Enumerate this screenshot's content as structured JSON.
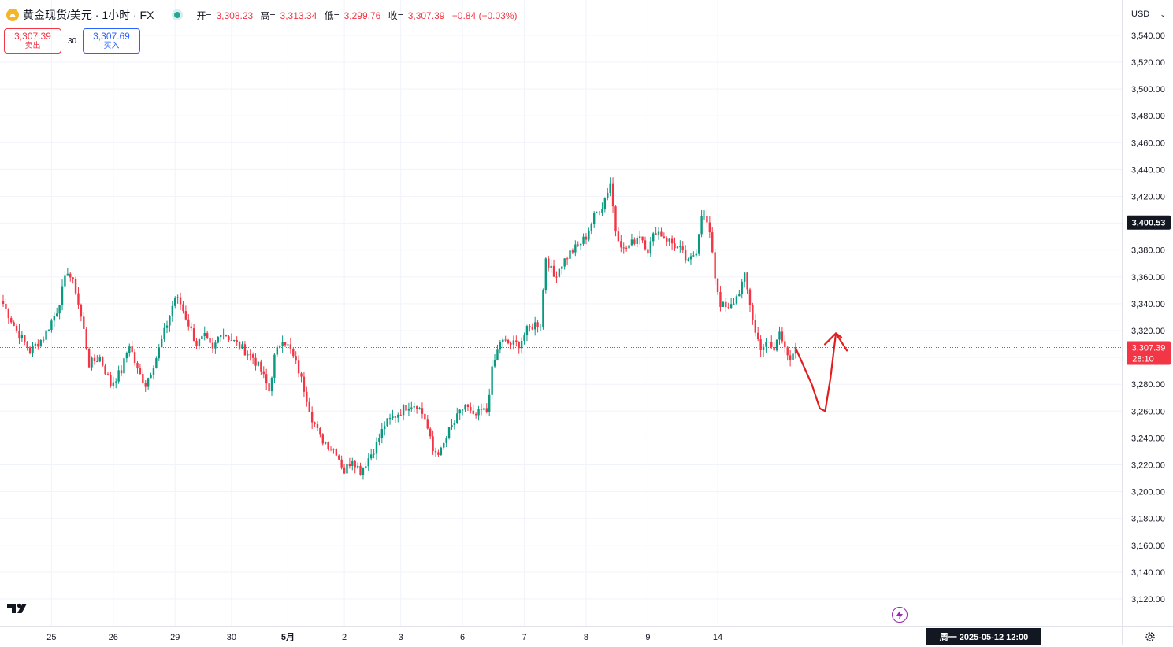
{
  "header": {
    "title": "黄金现货/美元 · 1小时 · FX",
    "open_label": "开=",
    "open": "3,308.23",
    "high_label": "高=",
    "high": "3,313.34",
    "low_label": "低=",
    "low": "3,299.76",
    "close_label": "收=",
    "close": "3,307.39",
    "change": "−0.84 (−0.03%)"
  },
  "trade": {
    "sell_price": "3,307.39",
    "sell_label": "卖出",
    "spread": "30",
    "buy_price": "3,307.69",
    "buy_label": "买入"
  },
  "currency": "USD",
  "time_tooltip": "周一 2025-05-12   12:00",
  "price_scale": {
    "ticks": [
      "3,540.00",
      "3,520.00",
      "3,500.00",
      "3,480.00",
      "3,460.00",
      "3,440.00",
      "3,420.00",
      "3,400.00",
      "3,380.00",
      "3,360.00",
      "3,340.00",
      "3,320.00",
      "3,300.00",
      "3,280.00",
      "3,260.00",
      "3,240.00",
      "3,220.00",
      "3,200.00",
      "3,180.00",
      "3,160.00",
      "3,140.00",
      "3,120.00"
    ],
    "tick_values": [
      3540,
      3520,
      3500,
      3480,
      3460,
      3440,
      3420,
      3400,
      3380,
      3360,
      3340,
      3320,
      3300,
      3280,
      3260,
      3240,
      3220,
      3200,
      3180,
      3160,
      3140,
      3120
    ],
    "crosshair_label": "3,400.53",
    "crosshair_value": 3400.53,
    "last_price_label": "3,307.39",
    "last_price_value": 3307.39,
    "countdown": "28:10"
  },
  "time_scale": {
    "labels": [
      "25",
      "26",
      "29",
      "30",
      "5月",
      "2",
      "3",
      "6",
      "7",
      "8",
      "9",
      "14"
    ],
    "bold": [
      "5月"
    ]
  },
  "colors": {
    "up": "#089981",
    "down": "#f23645",
    "grid": "#f0f3fa",
    "text": "#131722",
    "annotation": "#e11d1d",
    "last_price": "#f23645"
  },
  "chart_data": {
    "type": "candlestick",
    "symbol": "黄金现货/美元",
    "timeframe": "1小时",
    "x_labels": [
      "25",
      "26",
      "29",
      "30",
      "5月",
      "2",
      "3",
      "6",
      "7",
      "8",
      "9",
      "14"
    ],
    "anchors": [
      [
        0,
        3340
      ],
      [
        5,
        3320
      ],
      [
        10,
        3305
      ],
      [
        15,
        3315
      ],
      [
        20,
        3335
      ],
      [
        24,
        3365
      ],
      [
        27,
        3350
      ],
      [
        30,
        3320
      ],
      [
        32,
        3295
      ],
      [
        36,
        3300
      ],
      [
        40,
        3280
      ],
      [
        44,
        3290
      ],
      [
        47,
        3310
      ],
      [
        50,
        3290
      ],
      [
        53,
        3280
      ],
      [
        57,
        3300
      ],
      [
        61,
        3325
      ],
      [
        64,
        3345
      ],
      [
        66,
        3340
      ],
      [
        69,
        3325
      ],
      [
        72,
        3310
      ],
      [
        75,
        3315
      ],
      [
        78,
        3305
      ],
      [
        81,
        3320
      ],
      [
        84,
        3315
      ],
      [
        87,
        3310
      ],
      [
        90,
        3305
      ],
      [
        93,
        3300
      ],
      [
        96,
        3290
      ],
      [
        99,
        3275
      ],
      [
        101,
        3300
      ],
      [
        104,
        3315
      ],
      [
        107,
        3305
      ],
      [
        110,
        3290
      ],
      [
        113,
        3270
      ],
      [
        115,
        3255
      ],
      [
        118,
        3240
      ],
      [
        121,
        3235
      ],
      [
        124,
        3230
      ],
      [
        127,
        3215
      ],
      [
        130,
        3225
      ],
      [
        133,
        3215
      ],
      [
        136,
        3225
      ],
      [
        139,
        3235
      ],
      [
        142,
        3250
      ],
      [
        145,
        3255
      ],
      [
        148,
        3260
      ],
      [
        151,
        3265
      ],
      [
        154,
        3265
      ],
      [
        157,
        3255
      ],
      [
        160,
        3230
      ],
      [
        163,
        3230
      ],
      [
        166,
        3245
      ],
      [
        169,
        3255
      ],
      [
        172,
        3265
      ],
      [
        175,
        3255
      ],
      [
        178,
        3260
      ],
      [
        180,
        3260
      ],
      [
        182,
        3290
      ],
      [
        185,
        3312
      ],
      [
        189,
        3310
      ],
      [
        192,
        3310
      ],
      [
        195,
        3320
      ],
      [
        198,
        3325
      ],
      [
        200,
        3325
      ],
      [
        202,
        3375
      ],
      [
        205,
        3360
      ],
      [
        208,
        3370
      ],
      [
        211,
        3378
      ],
      [
        214,
        3383
      ],
      [
        217,
        3390
      ],
      [
        220,
        3405
      ],
      [
        223,
        3413
      ],
      [
        226,
        3430
      ],
      [
        228,
        3395
      ],
      [
        231,
        3380
      ],
      [
        234,
        3385
      ],
      [
        237,
        3392
      ],
      [
        240,
        3380
      ],
      [
        243,
        3395
      ],
      [
        246,
        3390
      ],
      [
        249,
        3385
      ],
      [
        252,
        3380
      ],
      [
        255,
        3370
      ],
      [
        258,
        3380
      ],
      [
        260,
        3408
      ],
      [
        262,
        3400
      ],
      [
        264,
        3380
      ],
      [
        265,
        3360
      ],
      [
        267,
        3340
      ],
      [
        270,
        3335
      ],
      [
        273,
        3345
      ],
      [
        276,
        3360
      ],
      [
        278,
        3340
      ],
      [
        280,
        3318
      ],
      [
        282,
        3308
      ],
      [
        285,
        3310
      ],
      [
        287,
        3305
      ],
      [
        289,
        3320
      ],
      [
        291,
        3310
      ],
      [
        293,
        3295
      ],
      [
        295,
        3307
      ]
    ],
    "day_start_indices": [
      18,
      41,
      64,
      85,
      106,
      127,
      148,
      171,
      194,
      217,
      240,
      266
    ],
    "forecast_path": [
      [
        295,
        3307
      ],
      [
        301,
        3280
      ],
      [
        304,
        3262
      ],
      [
        306,
        3260
      ],
      [
        308,
        3285
      ],
      [
        310,
        3318
      ],
      [
        312,
        3315
      ]
    ]
  }
}
